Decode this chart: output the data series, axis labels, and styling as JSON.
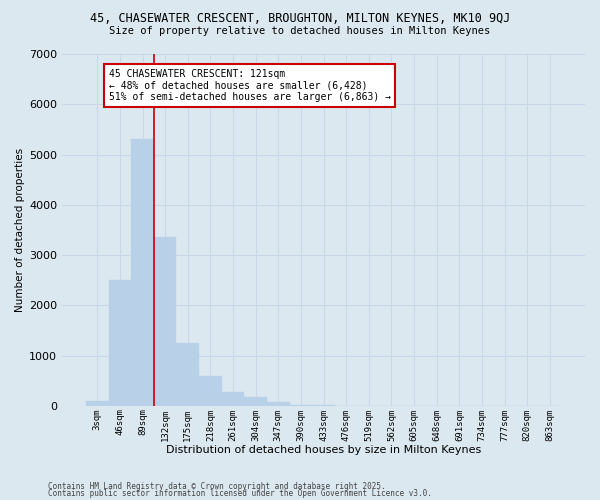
{
  "title1": "45, CHASEWATER CRESCENT, BROUGHTON, MILTON KEYNES, MK10 9QJ",
  "title2": "Size of property relative to detached houses in Milton Keynes",
  "xlabel": "Distribution of detached houses by size in Milton Keynes",
  "ylabel": "Number of detached properties",
  "categories": [
    "3sqm",
    "46sqm",
    "89sqm",
    "132sqm",
    "175sqm",
    "218sqm",
    "261sqm",
    "304sqm",
    "347sqm",
    "390sqm",
    "433sqm",
    "476sqm",
    "519sqm",
    "562sqm",
    "605sqm",
    "648sqm",
    "691sqm",
    "734sqm",
    "777sqm",
    "820sqm",
    "863sqm"
  ],
  "values": [
    100,
    2500,
    5300,
    3350,
    1250,
    600,
    275,
    175,
    75,
    25,
    10,
    0,
    0,
    0,
    0,
    0,
    0,
    0,
    0,
    0,
    0
  ],
  "bar_color": "#b8d0e8",
  "bar_edge_color": "#b8d0e8",
  "vline_color": "#cc0000",
  "annotation_title": "45 CHASEWATER CRESCENT: 121sqm",
  "annotation_line2": "← 48% of detached houses are smaller (6,428)",
  "annotation_line3": "51% of semi-detached houses are larger (6,863) →",
  "annotation_box_color": "#ffffff",
  "annotation_box_edge": "#cc0000",
  "grid_color": "#c8d8e8",
  "bg_color": "#dce8f0",
  "ylim": [
    0,
    7000
  ],
  "yticks": [
    0,
    1000,
    2000,
    3000,
    4000,
    5000,
    6000,
    7000
  ],
  "footer1": "Contains HM Land Registry data © Crown copyright and database right 2025.",
  "footer2": "Contains public sector information licensed under the Open Government Licence v3.0."
}
